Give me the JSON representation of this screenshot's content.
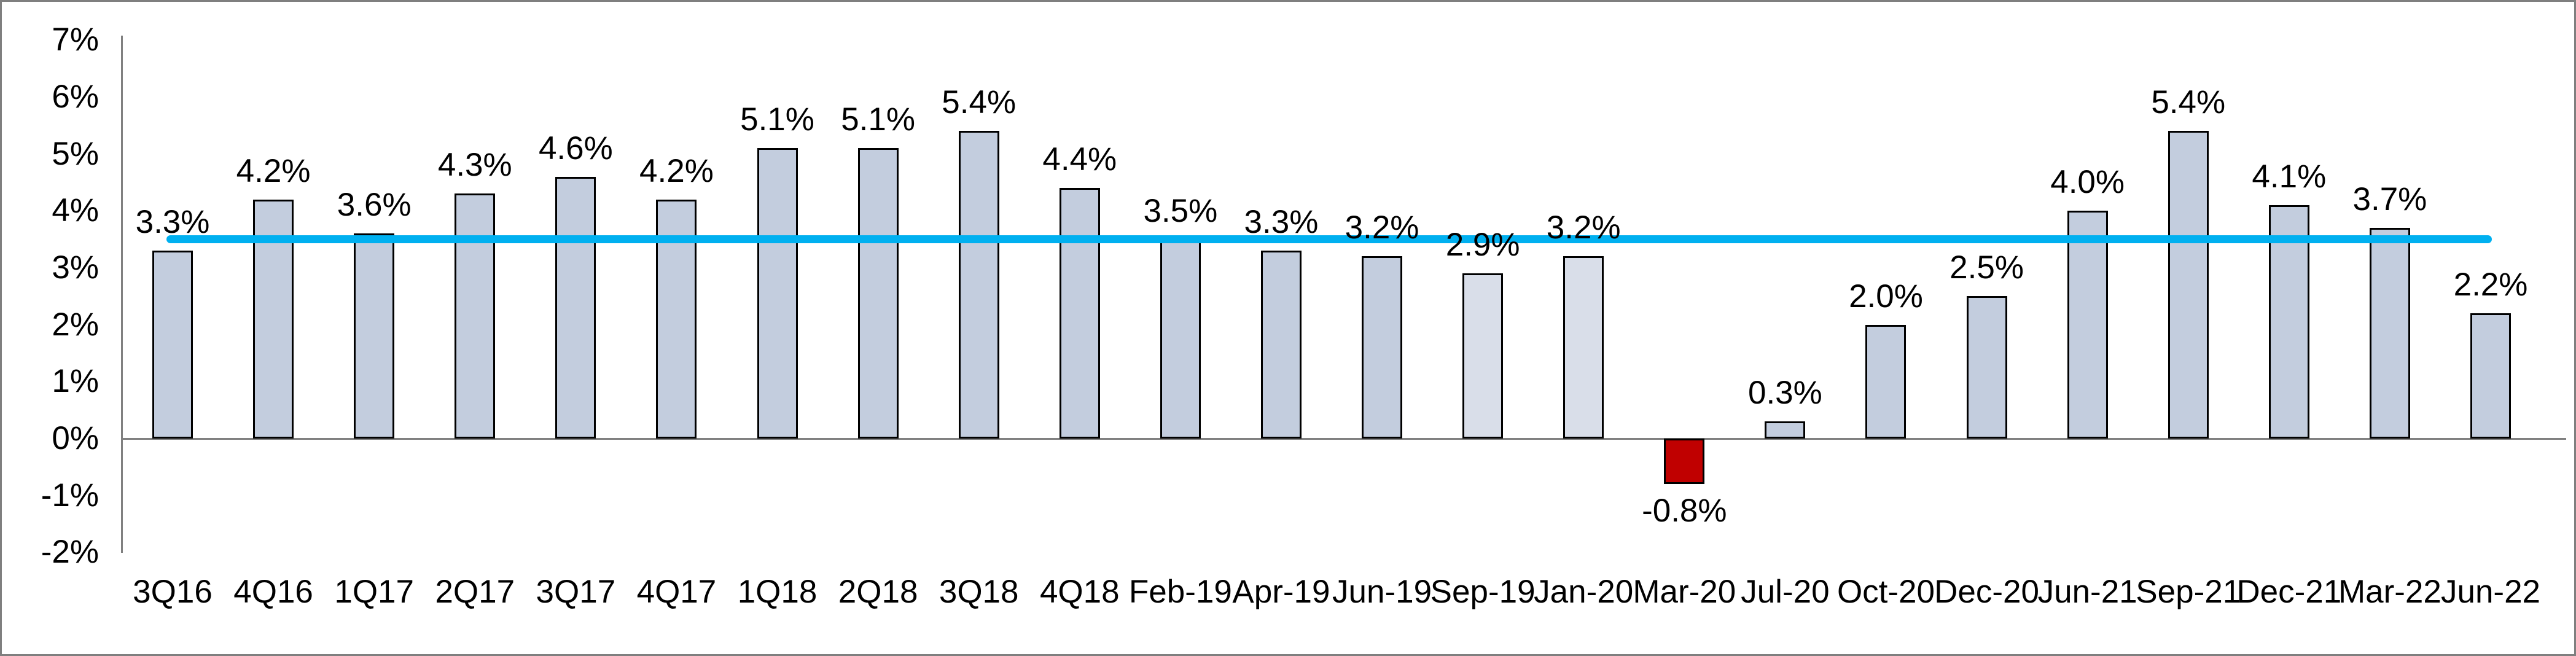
{
  "chart_data": {
    "type": "bar",
    "title": "",
    "xlabel": "",
    "ylabel": "",
    "ylim": [
      -2,
      7
    ],
    "grid": false,
    "legend": "none",
    "axis_color": "#808080",
    "colors": {
      "bar_normal": "#C3CDDE",
      "bar_light": "#D9DEE9",
      "bar_negative": "#C00000",
      "bar_border": "#000000",
      "reference_line": "#00B0F0",
      "text": "#000000"
    },
    "yticks": [
      {
        "value": 7,
        "label": "7%"
      },
      {
        "value": 6,
        "label": "6%"
      },
      {
        "value": 5,
        "label": "5%"
      },
      {
        "value": 4,
        "label": "4%"
      },
      {
        "value": 3,
        "label": "3%"
      },
      {
        "value": 2,
        "label": "2%"
      },
      {
        "value": 1,
        "label": "1%"
      },
      {
        "value": 0,
        "label": "0%"
      },
      {
        "value": -1,
        "label": "-1%"
      },
      {
        "value": -2,
        "label": "-2%"
      }
    ],
    "categories": [
      "3Q16",
      "4Q16",
      "1Q17",
      "2Q17",
      "3Q17",
      "4Q17",
      "1Q18",
      "2Q18",
      "3Q18",
      "4Q18",
      "Feb-19",
      "Apr-19",
      "Jun-19",
      "Sep-19",
      "Jan-20",
      "Mar-20",
      "Jul-20",
      "Oct-20",
      "Dec-20",
      "Jun-21",
      "Sep-21",
      "Dec-21",
      "Mar-22",
      "Jun-22"
    ],
    "values": [
      3.3,
      4.2,
      3.6,
      4.3,
      4.6,
      4.2,
      5.1,
      5.1,
      5.4,
      4.4,
      3.5,
      3.3,
      3.2,
      2.9,
      3.2,
      -0.8,
      0.3,
      2.0,
      2.5,
      4.0,
      5.4,
      4.1,
      3.7,
      2.2
    ],
    "points": [
      {
        "category": "3Q16",
        "value": 3.3,
        "label": "3.3%",
        "fill": "normal"
      },
      {
        "category": "4Q16",
        "value": 4.2,
        "label": "4.2%",
        "fill": "normal"
      },
      {
        "category": "1Q17",
        "value": 3.6,
        "label": "3.6%",
        "fill": "normal"
      },
      {
        "category": "2Q17",
        "value": 4.3,
        "label": "4.3%",
        "fill": "normal"
      },
      {
        "category": "3Q17",
        "value": 4.6,
        "label": "4.6%",
        "fill": "normal"
      },
      {
        "category": "4Q17",
        "value": 4.2,
        "label": "4.2%",
        "fill": "normal"
      },
      {
        "category": "1Q18",
        "value": 5.1,
        "label": "5.1%",
        "fill": "normal"
      },
      {
        "category": "2Q18",
        "value": 5.1,
        "label": "5.1%",
        "fill": "normal"
      },
      {
        "category": "3Q18",
        "value": 5.4,
        "label": "5.4%",
        "fill": "normal"
      },
      {
        "category": "4Q18",
        "value": 4.4,
        "label": "4.4%",
        "fill": "normal"
      },
      {
        "category": "Feb-19",
        "value": 3.5,
        "label": "3.5%",
        "fill": "normal"
      },
      {
        "category": "Apr-19",
        "value": 3.3,
        "label": "3.3%",
        "fill": "normal"
      },
      {
        "category": "Jun-19",
        "value": 3.2,
        "label": "3.2%",
        "fill": "normal"
      },
      {
        "category": "Sep-19",
        "value": 2.9,
        "label": "2.9%",
        "fill": "light"
      },
      {
        "category": "Jan-20",
        "value": 3.2,
        "label": "3.2%",
        "fill": "light"
      },
      {
        "category": "Mar-20",
        "value": -0.8,
        "label": "-0.8%",
        "fill": "negative"
      },
      {
        "category": "Jul-20",
        "value": 0.3,
        "label": "0.3%",
        "fill": "normal"
      },
      {
        "category": "Oct-20",
        "value": 2.0,
        "label": "2.0%",
        "fill": "normal"
      },
      {
        "category": "Dec-20",
        "value": 2.5,
        "label": "2.5%",
        "fill": "normal"
      },
      {
        "category": "Jun-21",
        "value": 4.0,
        "label": "4.0%",
        "fill": "normal"
      },
      {
        "category": "Sep-21",
        "value": 5.4,
        "label": "5.4%",
        "fill": "normal"
      },
      {
        "category": "Dec-21",
        "value": 4.1,
        "label": "4.1%",
        "fill": "normal"
      },
      {
        "category": "Mar-22",
        "value": 3.7,
        "label": "3.7%",
        "fill": "normal"
      },
      {
        "category": "Jun-22",
        "value": 2.2,
        "label": "2.2%",
        "fill": "normal"
      }
    ],
    "reference_line": {
      "value": 3.5,
      "color": "#00B0F0"
    }
  }
}
